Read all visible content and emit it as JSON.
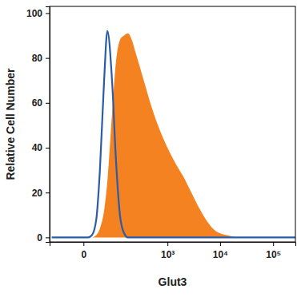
{
  "chart_data": {
    "type": "histogram",
    "x_label": "Glut3",
    "y_label": "Relative Cell Number",
    "log": "x",
    "x": [
      -80,
      6,
      12,
      20,
      28,
      39,
      49,
      66,
      83,
      104,
      129,
      158,
      193,
      234,
      341,
      492,
      705,
      1000,
      1430,
      2030,
      2870,
      4050,
      5750,
      8130,
      13500,
      22800,
      44800,
      100000,
      262144
    ],
    "series": [
      {
        "type": "line",
        "color": "#2a5ca8",
        "values": [
          0,
          0,
          1,
          8,
          30,
          70,
          92,
          70,
          35,
          10,
          2,
          0,
          0,
          0,
          0,
          0,
          0,
          0,
          0,
          0,
          0,
          0,
          0,
          0,
          0,
          0,
          0,
          0,
          0
        ]
      },
      {
        "type": "area",
        "color": "#f58220",
        "values": [
          0,
          0,
          0,
          1,
          4,
          12,
          25,
          55,
          78,
          88,
          90,
          91,
          88,
          82,
          70,
          58,
          48,
          40,
          33,
          27,
          20,
          13,
          7,
          3,
          1,
          0,
          0,
          0,
          0
        ]
      }
    ],
    "xlim": [
      -90,
      262144
    ],
    "xticks": [
      0,
      {
        "value": 1000,
        "label": "10³"
      },
      {
        "value": 10000,
        "label": "10⁴"
      },
      {
        "value": 100000,
        "label": "10⁵"
      }
    ],
    "ylim": [
      -2,
      103
    ],
    "yticks": [
      0,
      20,
      40,
      60,
      80,
      100
    ]
  }
}
